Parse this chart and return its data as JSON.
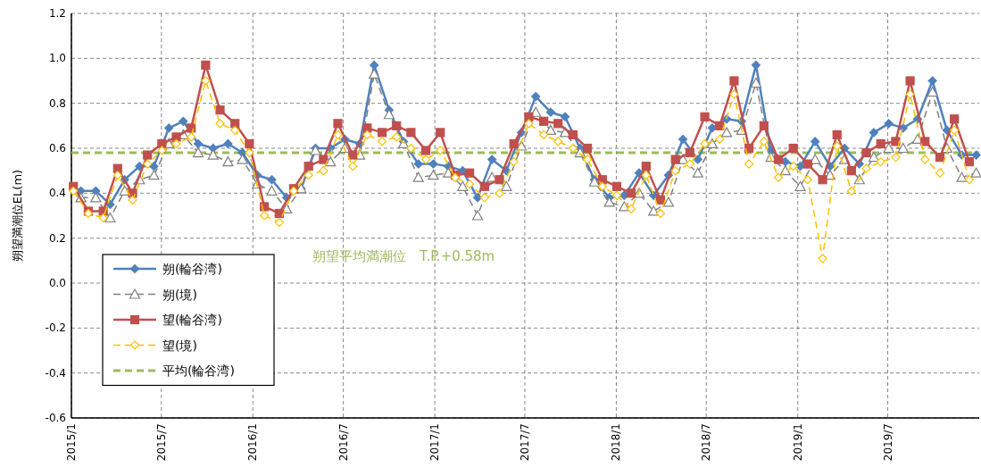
{
  "chart_data": {
    "type": "line",
    "ylabel": "朔望満潮位EL(m)",
    "xlim": [
      "2015-01-01",
      "2020-01-01"
    ],
    "xticks": [
      {
        "value": "2015-01-01",
        "label": "2015/1"
      },
      {
        "value": "2015-07-01",
        "label": "2015/7"
      },
      {
        "value": "2016-01-01",
        "label": "2016/1"
      },
      {
        "value": "2016-07-01",
        "label": "2016/7"
      },
      {
        "value": "2017-01-01",
        "label": "2017/1"
      },
      {
        "value": "2017-07-01",
        "label": "2017/7"
      },
      {
        "value": "2018-01-01",
        "label": "2018/1"
      },
      {
        "value": "2018-07-01",
        "label": "2018/7"
      },
      {
        "value": "2019-01-01",
        "label": "2019/1"
      },
      {
        "value": "2019-07-01",
        "label": "2019/7"
      }
    ],
    "ylim": [
      -0.6,
      1.2
    ],
    "yticks": [
      {
        "value": -0.6,
        "label": "-0.6"
      },
      {
        "value": -0.4,
        "label": "-0.4"
      },
      {
        "value": -0.2,
        "label": "-0.2"
      },
      {
        "value": 0,
        "label": "0.0"
      },
      {
        "value": 0.2,
        "label": "0.2"
      },
      {
        "value": 0.4,
        "label": "0.4"
      },
      {
        "value": 0.6,
        "label": "0.6"
      },
      {
        "value": 0.8,
        "label": "0.8"
      },
      {
        "value": 1.0,
        "label": "1.0"
      },
      {
        "value": 1.2,
        "label": "1.2"
      }
    ],
    "grid": true,
    "legend": "left",
    "series": [
      {
        "name": "朔(輪谷湾)",
        "color": "#4f81bd",
        "marker": "diamond",
        "line_style": "solid",
        "x": [
          "2015-01-20",
          "2015-02-19",
          "2015-03-20",
          "2015-04-18",
          "2015-05-18",
          "2015-06-16",
          "2015-07-16",
          "2015-08-14",
          "2015-09-13",
          "2015-10-13",
          "2015-11-12",
          "2015-12-11",
          "2016-01-10",
          "2016-02-08",
          "2016-03-09",
          "2016-04-07",
          "2016-05-06",
          "2016-06-05",
          "2016-07-04",
          "2016-08-03",
          "2016-09-01",
          "2016-10-01",
          "2016-10-30",
          "2016-11-29",
          "2016-12-29",
          "2017-01-28",
          "2017-02-26",
          "2017-03-28",
          "2017-04-26",
          "2017-05-25",
          "2017-06-24",
          "2017-07-23",
          "2017-08-22",
          "2017-09-20",
          "2017-10-20",
          "2017-11-18",
          "2017-12-18",
          "2018-01-17",
          "2018-02-16",
          "2018-03-17",
          "2018-04-16",
          "2018-05-15",
          "2018-06-14",
          "2018-07-13",
          "2018-08-11",
          "2018-09-10",
          "2018-10-09",
          "2018-11-08",
          "2018-12-07",
          "2019-01-06",
          "2019-02-05",
          "2019-03-07",
          "2019-04-05",
          "2019-05-05",
          "2019-06-03",
          "2019-07-03",
          "2019-08-01",
          "2019-08-30",
          "2019-09-29",
          "2019-10-28",
          "2019-11-27",
          "2019-12-26"
        ],
        "values": [
          0.41,
          0.41,
          0.35,
          0.46,
          0.52,
          0.52,
          0.69,
          0.72,
          0.62,
          0.6,
          0.62,
          0.58,
          0.48,
          0.46,
          0.38,
          0.42,
          0.6,
          0.6,
          0.64,
          0.62,
          0.97,
          0.77,
          0.63,
          0.53,
          0.53,
          0.52,
          0.5,
          0.38,
          0.55,
          0.5,
          0.67,
          0.83,
          0.76,
          0.74,
          0.6,
          0.46,
          0.38,
          0.39,
          0.49,
          0.39,
          0.48,
          0.64,
          0.55,
          0.69,
          0.73,
          0.72,
          0.97,
          0.59,
          0.54,
          0.52,
          0.63,
          0.52,
          0.6,
          0.53,
          0.67,
          0.71,
          0.69,
          0.73,
          0.9,
          0.68,
          0.57,
          0.57
        ]
      },
      {
        "name": "朔(境)",
        "color": "#808080",
        "marker": "triangle",
        "line_style": "dashed",
        "x": [
          "2015-01-20",
          "2015-02-19",
          "2015-03-20",
          "2015-04-18",
          "2015-05-18",
          "2015-06-16",
          "2015-07-16",
          "2015-08-14",
          "2015-09-13",
          "2015-10-13",
          "2015-11-12",
          "2015-12-11",
          "2016-01-10",
          "2016-02-08",
          "2016-03-09",
          "2016-04-07",
          "2016-05-06",
          "2016-06-05",
          "2016-07-04",
          "2016-08-03",
          "2016-09-01",
          "2016-10-01",
          "2016-10-30",
          "2016-11-29",
          "2016-12-29",
          "2017-01-28",
          "2017-02-26",
          "2017-03-28",
          "2017-04-26",
          "2017-05-25",
          "2017-06-24",
          "2017-07-23",
          "2017-08-22",
          "2017-09-20",
          "2017-10-20",
          "2017-11-18",
          "2017-12-18",
          "2018-01-17",
          "2018-02-16",
          "2018-03-17",
          "2018-04-16",
          "2018-05-15",
          "2018-06-14",
          "2018-07-13",
          "2018-08-11",
          "2018-09-10",
          "2018-10-09",
          "2018-11-08",
          "2018-12-07",
          "2019-01-06",
          "2019-02-05",
          "2019-03-07",
          "2019-04-05",
          "2019-05-05",
          "2019-06-03",
          "2019-07-03",
          "2019-08-01",
          "2019-08-30",
          "2019-09-29",
          "2019-10-28",
          "2019-11-27",
          "2019-12-26"
        ],
        "values": [
          0.38,
          0.38,
          0.29,
          0.41,
          0.46,
          0.48,
          0.62,
          0.66,
          0.58,
          0.57,
          0.54,
          0.55,
          0.44,
          0.41,
          0.33,
          0.42,
          0.59,
          0.54,
          0.6,
          0.57,
          0.93,
          0.75,
          0.62,
          0.47,
          0.48,
          0.49,
          0.43,
          0.3,
          0.47,
          0.43,
          0.61,
          0.76,
          0.68,
          0.67,
          0.58,
          0.45,
          0.36,
          0.34,
          0.4,
          0.32,
          0.36,
          0.55,
          0.49,
          0.62,
          0.67,
          0.68,
          0.89,
          0.56,
          0.5,
          0.43,
          0.55,
          0.48,
          0.55,
          0.46,
          0.56,
          0.6,
          0.6,
          0.64,
          0.85,
          0.6,
          0.47,
          0.49
        ]
      },
      {
        "name": "望(輪谷湾)",
        "color": "#c0504d",
        "marker": "square",
        "line_style": "solid",
        "x": [
          "2015-01-05",
          "2015-02-04",
          "2015-03-06",
          "2015-04-04",
          "2015-05-04",
          "2015-06-03",
          "2015-07-02",
          "2015-07-31",
          "2015-08-30",
          "2015-09-28",
          "2015-10-27",
          "2015-11-26",
          "2015-12-25",
          "2016-01-24",
          "2016-02-23",
          "2016-03-23",
          "2016-04-22",
          "2016-05-22",
          "2016-06-20",
          "2016-07-20",
          "2016-08-18",
          "2016-09-17",
          "2016-10-16",
          "2016-11-14",
          "2016-12-14",
          "2017-01-12",
          "2017-02-11",
          "2017-03-12",
          "2017-04-11",
          "2017-05-11",
          "2017-06-09",
          "2017-07-09",
          "2017-08-08",
          "2017-09-06",
          "2017-10-06",
          "2017-11-04",
          "2017-12-04",
          "2018-01-02",
          "2018-01-31",
          "2018-03-02",
          "2018-03-31",
          "2018-04-30",
          "2018-05-29",
          "2018-06-28",
          "2018-07-28",
          "2018-08-26",
          "2018-09-25",
          "2018-10-25",
          "2018-11-23",
          "2018-12-23",
          "2019-01-21",
          "2019-02-20",
          "2019-03-21",
          "2019-04-19",
          "2019-05-19",
          "2019-06-17",
          "2019-07-17",
          "2019-08-15",
          "2019-09-14",
          "2019-10-14",
          "2019-11-12",
          "2019-12-12"
        ],
        "values": [
          0.43,
          0.32,
          0.32,
          0.51,
          0.4,
          0.57,
          0.62,
          0.65,
          0.69,
          0.97,
          0.77,
          0.71,
          0.62,
          0.34,
          0.31,
          0.42,
          0.52,
          0.55,
          0.71,
          0.57,
          0.69,
          0.67,
          0.7,
          0.67,
          0.59,
          0.67,
          0.48,
          0.49,
          0.43,
          0.46,
          0.62,
          0.74,
          0.72,
          0.71,
          0.66,
          0.6,
          0.46,
          0.43,
          0.4,
          0.52,
          0.37,
          0.55,
          0.58,
          0.74,
          0.7,
          0.9,
          0.6,
          0.7,
          0.55,
          0.6,
          0.53,
          0.46,
          0.66,
          0.5,
          0.58,
          0.62,
          0.63,
          0.9,
          0.63,
          0.56,
          0.73,
          0.54
        ]
      },
      {
        "name": "望(境)",
        "color": "#ffc000",
        "marker": "diamond",
        "line_style": "dashed",
        "x": [
          "2015-01-05",
          "2015-02-04",
          "2015-03-06",
          "2015-04-04",
          "2015-05-04",
          "2015-06-03",
          "2015-07-02",
          "2015-07-31",
          "2015-08-30",
          "2015-09-28",
          "2015-10-27",
          "2015-11-26",
          "2015-12-25",
          "2016-01-24",
          "2016-02-23",
          "2016-03-23",
          "2016-04-22",
          "2016-05-22",
          "2016-06-20",
          "2016-07-20",
          "2016-08-18",
          "2016-09-17",
          "2016-10-16",
          "2016-11-14",
          "2016-12-14",
          "2017-01-12",
          "2017-02-11",
          "2017-03-12",
          "2017-04-11",
          "2017-05-11",
          "2017-06-09",
          "2017-07-09",
          "2017-08-08",
          "2017-09-06",
          "2017-10-06",
          "2017-11-04",
          "2017-12-04",
          "2018-01-02",
          "2018-01-31",
          "2018-03-02",
          "2018-03-31",
          "2018-04-30",
          "2018-05-29",
          "2018-06-28",
          "2018-07-28",
          "2018-08-26",
          "2018-09-25",
          "2018-10-25",
          "2018-11-23",
          "2018-12-23",
          "2019-01-21",
          "2019-02-20",
          "2019-03-21",
          "2019-04-19",
          "2019-05-19",
          "2019-06-17",
          "2019-07-17",
          "2019-08-15",
          "2019-09-14",
          "2019-10-14",
          "2019-11-12",
          "2019-12-12"
        ],
        "values": [
          0.41,
          0.31,
          0.29,
          0.48,
          0.37,
          0.53,
          0.59,
          0.62,
          0.65,
          0.9,
          0.71,
          0.68,
          0.58,
          0.3,
          0.27,
          0.41,
          0.48,
          0.5,
          0.66,
          0.52,
          0.66,
          0.63,
          0.65,
          0.6,
          0.55,
          0.59,
          0.47,
          0.44,
          0.38,
          0.4,
          0.54,
          0.71,
          0.66,
          0.63,
          0.6,
          0.55,
          0.43,
          0.39,
          0.33,
          0.48,
          0.31,
          0.5,
          0.53,
          0.62,
          0.64,
          0.84,
          0.53,
          0.63,
          0.47,
          0.52,
          0.46,
          0.11,
          0.61,
          0.41,
          0.51,
          0.54,
          0.56,
          0.84,
          0.55,
          0.49,
          0.68,
          0.46
        ]
      }
    ],
    "ref_lines": [
      {
        "axis": "y",
        "value": 0.58,
        "label": "平均(輪谷湾)",
        "color": "#9bbb59",
        "line_style": "dashed"
      }
    ],
    "annotations": [
      "朔望平均満潮位　T.P.+0.58m"
    ]
  }
}
